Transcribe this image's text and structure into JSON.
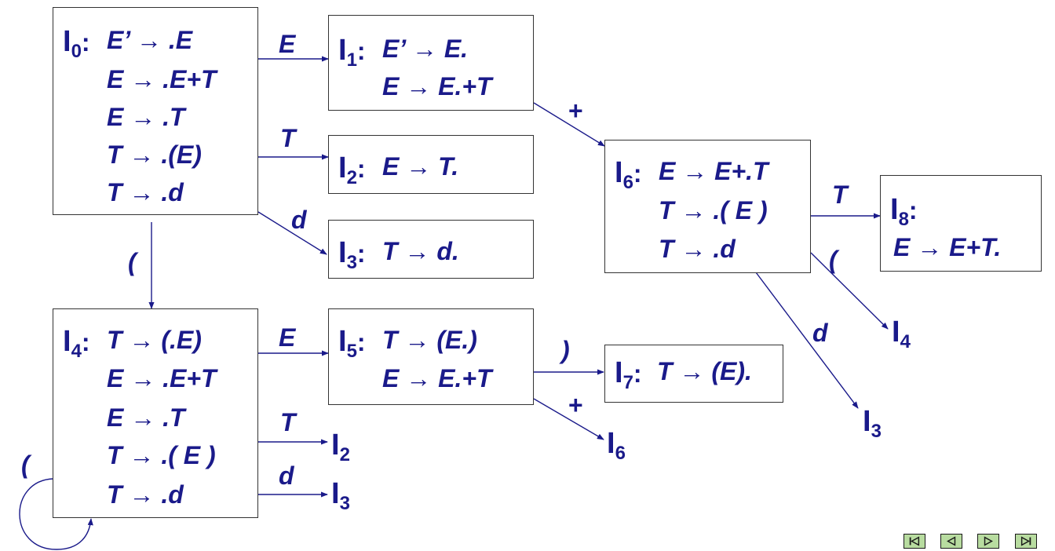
{
  "states": [
    {
      "id": "I0",
      "label": "I",
      "index": "0",
      "items": [
        "E’ → .E",
        "E → .E+T",
        "E → .T",
        "T → .(E)",
        "T → .d"
      ]
    },
    {
      "id": "I1",
      "label": "I",
      "index": "1",
      "items": [
        "E’ → E.",
        "E → E.+T"
      ]
    },
    {
      "id": "I2",
      "label": "I",
      "index": "2",
      "items": [
        "E → T."
      ]
    },
    {
      "id": "I3",
      "label": "I",
      "index": "3",
      "items": [
        "T → d."
      ]
    },
    {
      "id": "I4",
      "label": "I",
      "index": "4",
      "items": [
        "T → (.E)",
        "E → .E+T",
        "E → .T",
        "T → .( E )",
        "T → .d"
      ]
    },
    {
      "id": "I5",
      "label": "I",
      "index": "5",
      "items": [
        "T → (E.)",
        "E → E.+T"
      ]
    },
    {
      "id": "I6",
      "label": "I",
      "index": "6",
      "items": [
        "E → E+.T",
        "T → .( E )",
        "T → .d"
      ]
    },
    {
      "id": "I7",
      "label": "I",
      "index": "7",
      "items": [
        "T → (E)."
      ]
    },
    {
      "id": "I8",
      "label": "I",
      "index": "8",
      "items": [
        "E → E+T."
      ]
    }
  ],
  "transitions": [
    {
      "from": "I0",
      "to": "I1",
      "symbol": "E"
    },
    {
      "from": "I0",
      "to": "I2",
      "symbol": "T"
    },
    {
      "from": "I0",
      "to": "I3",
      "symbol": "d"
    },
    {
      "from": "I0",
      "to": "I4",
      "symbol": "("
    },
    {
      "from": "I1",
      "to": "I6",
      "symbol": "+"
    },
    {
      "from": "I4",
      "to": "I5",
      "symbol": "E"
    },
    {
      "from": "I4",
      "to": "I2",
      "symbol": "T"
    },
    {
      "from": "I4",
      "to": "I3",
      "symbol": "d"
    },
    {
      "from": "I4",
      "to": "I4",
      "symbol": "("
    },
    {
      "from": "I5",
      "to": "I7",
      "symbol": ")"
    },
    {
      "from": "I5",
      "to": "I6",
      "symbol": "+"
    },
    {
      "from": "I6",
      "to": "I8",
      "symbol": "T"
    },
    {
      "from": "I6",
      "to": "I4",
      "symbol": "("
    },
    {
      "from": "I6",
      "to": "I3",
      "symbol": "d"
    }
  ],
  "nav": {
    "first": "first-slide-icon",
    "prev": "previous-slide-icon",
    "next": "next-slide-icon",
    "last": "last-slide-icon"
  },
  "colors": {
    "text": "#1a1a8a",
    "border": "#333333",
    "arrow": "#1a1a8a",
    "nav_fill": "#b8dca0"
  }
}
